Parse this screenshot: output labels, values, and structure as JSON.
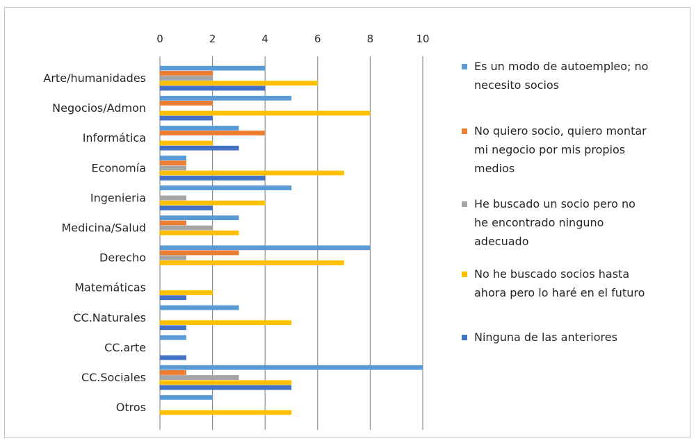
{
  "chart_data": {
    "type": "bar",
    "orientation": "horizontal",
    "title": "",
    "xlabel": "",
    "ylabel": "",
    "xlim": [
      0,
      10
    ],
    "x_ticks": [
      "0",
      "2",
      "4",
      "6",
      "8",
      "10"
    ],
    "grid": true,
    "x_axis_position": "top",
    "legend_position": "right",
    "categories": [
      "Arte/humanidades",
      "Negocios/Admon",
      "Informática",
      "Economía",
      "Ingenieria",
      "Medicina/Salud",
      "Derecho",
      "Matemáticas",
      "CC.Naturales",
      "CC.arte",
      "CC.Sociales",
      "Otros"
    ],
    "series": [
      {
        "name": "Es un modo de autoempleo; no necesito socios",
        "color": "#5B9BD5",
        "values": [
          4,
          5,
          3,
          1,
          5,
          3,
          8,
          0,
          3,
          1,
          10,
          2
        ]
      },
      {
        "name": "No quiero socio, quiero montar mi negocio por mis propios medios",
        "color": "#ED7D31",
        "values": [
          2,
          2,
          4,
          1,
          0,
          1,
          3,
          0,
          0,
          0,
          1,
          0
        ]
      },
      {
        "name": "He buscado un socio pero no he encontrado ninguno adecuado",
        "color": "#A5A5A5",
        "values": [
          2,
          0,
          0,
          1,
          1,
          2,
          1,
          0,
          0,
          0,
          3,
          0
        ]
      },
      {
        "name": "No he buscado socios hasta ahora pero lo haré en el futuro",
        "color": "#FFC000",
        "values": [
          6,
          8,
          2,
          7,
          4,
          3,
          7,
          2,
          5,
          0,
          5,
          5
        ]
      },
      {
        "name": "Ninguna de las anteriores",
        "color": "#4472C4",
        "values": [
          4,
          2,
          3,
          4,
          2,
          0,
          0,
          1,
          1,
          1,
          5,
          0
        ]
      }
    ],
    "legend": [
      {
        "lines": [
          "Es un modo de autoempleo; no",
          "necesito socios"
        ]
      },
      {
        "lines": [
          "No quiero socio, quiero montar",
          "mi negocio por mis propios",
          "medios"
        ]
      },
      {
        "lines": [
          "He buscado un socio pero no",
          "he encontrado ninguno",
          "adecuado"
        ]
      },
      {
        "lines": [
          "No he buscado socios hasta",
          "ahora pero lo haré en el futuro"
        ]
      },
      {
        "lines": [
          "Ninguna de las anteriores"
        ]
      }
    ]
  }
}
